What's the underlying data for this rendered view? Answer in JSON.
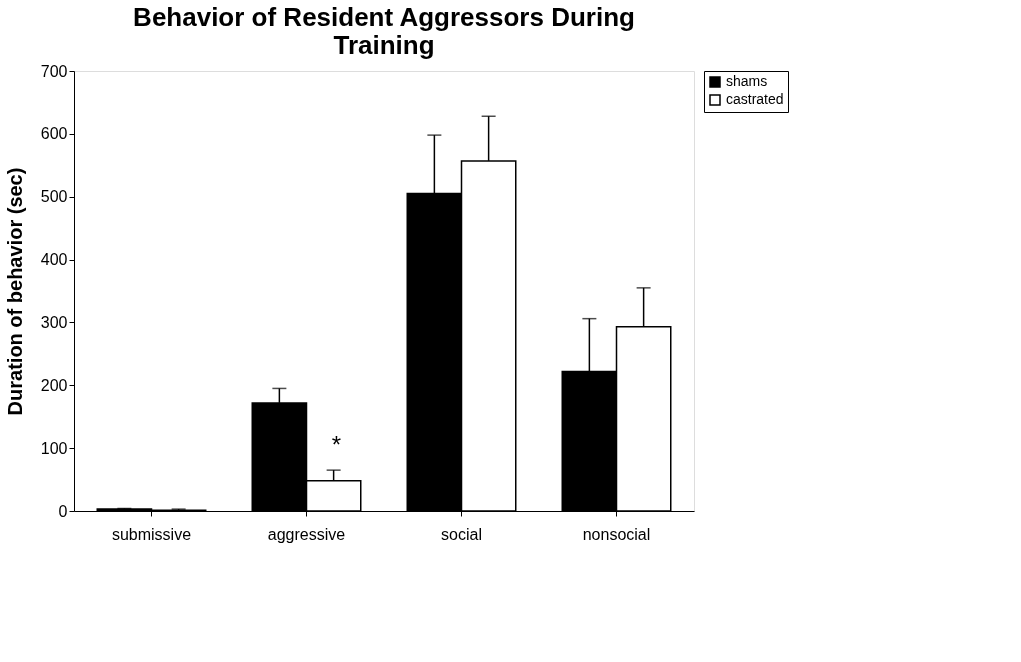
{
  "chart_data": {
    "type": "bar",
    "title": [
      "Behavior of Resident Aggressors During",
      "Training"
    ],
    "ylabel": "Duration of behavior (sec)",
    "categories": [
      "submissive",
      "aggressive",
      "social",
      "nonsocial"
    ],
    "series": [
      {
        "name": "shams",
        "color": "#000000",
        "values": [
          3,
          172,
          505,
          222
        ],
        "errors": [
          [
            3,
            4
          ],
          [
            172,
            195
          ],
          [
            505,
            598
          ],
          [
            222,
            306
          ]
        ]
      },
      {
        "name": "castrated",
        "color": "#ffffff",
        "values": [
          1,
          48,
          557,
          293
        ],
        "errors": [
          [
            1,
            3
          ],
          [
            48,
            65
          ],
          [
            557,
            628
          ],
          [
            293,
            355
          ]
        ]
      }
    ],
    "ylim": [
      0,
      700
    ],
    "yticks": [
      0,
      100,
      200,
      300,
      400,
      500,
      600,
      700
    ],
    "grid": false,
    "legend": "top right",
    "annotations": [
      {
        "text": "*",
        "x": "aggressive",
        "y": 85
      }
    ]
  }
}
